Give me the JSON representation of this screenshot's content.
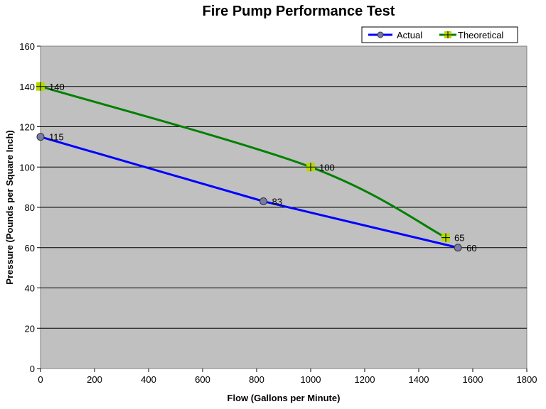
{
  "chart_data": {
    "type": "line",
    "title": "Fire Pump Performance Test",
    "xlabel": "Flow (Gallons per Minute)",
    "ylabel": "Pressure (Pounds per Square Inch)",
    "xlim": [
      0,
      1800
    ],
    "ylim": [
      0,
      160
    ],
    "xticks": [
      0,
      200,
      400,
      600,
      800,
      1000,
      1200,
      1400,
      1600,
      1800
    ],
    "yticks": [
      0,
      20,
      40,
      60,
      80,
      100,
      120,
      140,
      160
    ],
    "grid": "horizontal",
    "legend_placement": "top-right",
    "plot_background": "#c0c0c0",
    "series": [
      {
        "name": "Actual",
        "color": "#0000ff",
        "marker": "circle",
        "marker_color": "#7a7aa8",
        "smooth": false,
        "x": [
          0,
          825,
          1545
        ],
        "y": [
          115,
          83,
          60
        ],
        "labels": [
          "115",
          "83",
          "60"
        ]
      },
      {
        "name": "Theoretical",
        "color": "#008000",
        "marker": "plus-square",
        "marker_color": "#b5d900",
        "smooth": true,
        "x": [
          0,
          1000,
          1500
        ],
        "y": [
          140,
          100,
          65
        ],
        "labels": [
          "140",
          "100",
          "65"
        ]
      }
    ]
  }
}
